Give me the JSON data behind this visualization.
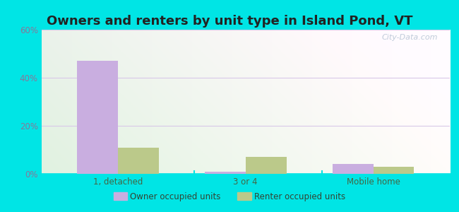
{
  "title": "Owners and renters by unit type in Island Pond, VT",
  "categories": [
    "1, detached",
    "3 or 4",
    "Mobile home"
  ],
  "owner_values": [
    47.0,
    1.0,
    4.0
  ],
  "renter_values": [
    11.0,
    7.0,
    3.0
  ],
  "owner_color": "#c9aee0",
  "renter_color": "#bbc98a",
  "ylim": [
    0,
    60
  ],
  "yticks": [
    0,
    20,
    40,
    60
  ],
  "ytick_labels": [
    "0%",
    "20%",
    "40%",
    "60%"
  ],
  "background_outer": "#00e5e5",
  "grid_color": "#d8c8e8",
  "bar_width": 0.32,
  "legend_labels": [
    "Owner occupied units",
    "Renter occupied units"
  ],
  "watermark": "City-Data.com",
  "title_fontsize": 13,
  "tick_color": "#557755"
}
